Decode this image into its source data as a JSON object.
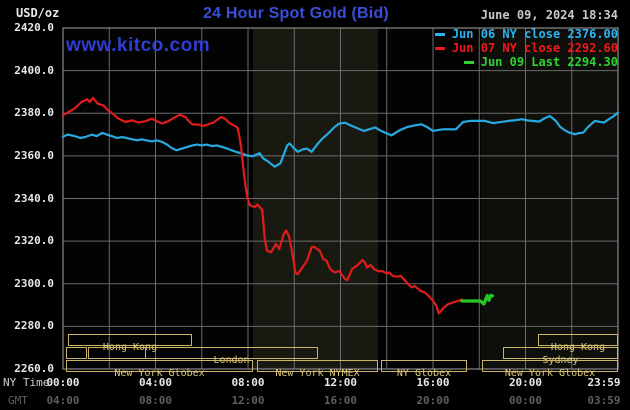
{
  "header": {
    "unit_label": "USD/oz",
    "title": "24 Hour Spot Gold (Bid)",
    "datetime": "June 09, 2024 18:34",
    "watermark": "www.kitco.com"
  },
  "colors": {
    "background": "#000000",
    "plot_background": "#030303",
    "grid": "#6b6b6b",
    "border": "#8a8a8a",
    "title_blue": "#3a4ed8",
    "watermark_blue": "#2e3ed2",
    "date_gray": "#c9c9c9",
    "axis_text": "#e8e8e8",
    "gmt_text": "#5e5e5e",
    "session_border": "#c9b565",
    "session_text": "#dcc87a",
    "series_blue": "#27aae1",
    "series_red": "#e11b1b",
    "series_green": "#24c724"
  },
  "legend": [
    {
      "label": "Jun 06 NY close 2376.00",
      "color": "#2db3f0"
    },
    {
      "label": "Jun 07 NY close 2292.60",
      "color": "#f01818"
    },
    {
      "label": "Jun 09 Last 2294.30",
      "color": "#2fd32f"
    }
  ],
  "axes": {
    "ny_label": "NY Time",
    "gmt_label": "GMT",
    "y_ticks": [
      {
        "label": "2420.0",
        "value": 2420
      },
      {
        "label": "2400.0",
        "value": 2400
      },
      {
        "label": "2380.0",
        "value": 2380
      },
      {
        "label": "2360.0",
        "value": 2360
      },
      {
        "label": "2340.0",
        "value": 2340
      },
      {
        "label": "2320.0",
        "value": 2320
      },
      {
        "label": "2300.0",
        "value": 2300
      },
      {
        "label": "2280.0",
        "value": 2280
      },
      {
        "label": "2260.0",
        "value": 2260
      }
    ],
    "x_ticks_ny": [
      {
        "label": "00:00",
        "hour": 0
      },
      {
        "label": "04:00",
        "hour": 4
      },
      {
        "label": "08:00",
        "hour": 8
      },
      {
        "label": "12:00",
        "hour": 12
      },
      {
        "label": "16:00",
        "hour": 16
      },
      {
        "label": "20:00",
        "hour": 20
      },
      {
        "label": "23:59",
        "hour": 23.983
      }
    ],
    "x_ticks_gmt": [
      {
        "label": "04:00",
        "hour": 0
      },
      {
        "label": "08:00",
        "hour": 4
      },
      {
        "label": "12:00",
        "hour": 8
      },
      {
        "label": "16:00",
        "hour": 12
      },
      {
        "label": "20:00",
        "hour": 16
      },
      {
        "label": "00:00",
        "hour": 20
      },
      {
        "label": "03:59",
        "hour": 23.983
      }
    ]
  },
  "sessions": {
    "rows": [
      {
        "boxes": [
          {
            "label": "Hong Kong",
            "h1": 0.2,
            "h2": 5.58
          },
          {
            "label": "Hong Kong",
            "h1": 20.54,
            "h2": 24
          }
        ]
      },
      {
        "boxes": [
          {
            "label": "",
            "h1": 0.15,
            "h2": 1.06
          },
          {
            "label": "",
            "h1": 1.06,
            "h2": 3.55
          },
          {
            "label": "London",
            "h1": 3.55,
            "h2": 11.03
          },
          {
            "label": "Sydney",
            "h1": 19.03,
            "h2": 24
          }
        ]
      },
      {
        "boxes": [
          {
            "label": "New York Globex",
            "h1": 0.12,
            "h2": 8.22
          },
          {
            "label": "New York NYMEX",
            "h1": 8.39,
            "h2": 13.62
          },
          {
            "label": "NY Globex",
            "h1": 13.75,
            "h2": 17.47
          },
          {
            "label": "New York Globex",
            "h1": 18.12,
            "h2": 24
          }
        ]
      }
    ]
  },
  "chart_data": {
    "type": "line",
    "title": "24 Hour Spot Gold (Bid)",
    "xlabel": "NY Time (hours)",
    "ylabel": "USD/oz",
    "xlim": [
      0,
      24
    ],
    "ylim": [
      2260,
      2420
    ],
    "y_grid_step": 20,
    "x_grid_step_hours": 2,
    "grid": true,
    "legend_position": "top-right",
    "bands": [
      {
        "name": "nymex-session",
        "h1": 8.22,
        "h2": 13.62,
        "color": "#181a11"
      },
      {
        "name": "sunday-globex-session",
        "h1": 18.08,
        "h2": 24,
        "color": "#0e0f0b"
      }
    ],
    "series": [
      {
        "name": "Jun 06 NY close 2376.00",
        "color": "#27aae1",
        "width": 2.2,
        "points": [
          [
            0,
            2369
          ],
          [
            0.2,
            2370
          ],
          [
            0.5,
            2369.3
          ],
          [
            0.75,
            2368.4
          ],
          [
            0.95,
            2368.8
          ],
          [
            1.25,
            2370
          ],
          [
            1.45,
            2369.3
          ],
          [
            1.7,
            2370.8
          ],
          [
            1.9,
            2370
          ],
          [
            2.1,
            2369.3
          ],
          [
            2.35,
            2368.4
          ],
          [
            2.55,
            2368.8
          ],
          [
            2.75,
            2368.4
          ],
          [
            3,
            2367.8
          ],
          [
            3.2,
            2367.3
          ],
          [
            3.4,
            2367.8
          ],
          [
            3.6,
            2367.3
          ],
          [
            3.85,
            2366.8
          ],
          [
            4.05,
            2367.3
          ],
          [
            4.3,
            2366.5
          ],
          [
            4.5,
            2365.3
          ],
          [
            4.7,
            2363.7
          ],
          [
            4.9,
            2362.6
          ],
          [
            5.15,
            2363.4
          ],
          [
            5.35,
            2364.1
          ],
          [
            5.6,
            2364.9
          ],
          [
            5.8,
            2365.3
          ],
          [
            6,
            2364.9
          ],
          [
            6.2,
            2365.3
          ],
          [
            6.45,
            2364.6
          ],
          [
            6.65,
            2364.9
          ],
          [
            6.9,
            2364.1
          ],
          [
            7.1,
            2363.4
          ],
          [
            7.3,
            2362.6
          ],
          [
            7.5,
            2361.8
          ],
          [
            7.75,
            2361.1
          ],
          [
            7.95,
            2360.2
          ],
          [
            8.2,
            2359.8
          ],
          [
            8.5,
            2361.3
          ],
          [
            8.65,
            2358.9
          ],
          [
            8.85,
            2357.5
          ],
          [
            9.15,
            2354.9
          ],
          [
            9.4,
            2356.5
          ],
          [
            9.7,
            2365
          ],
          [
            9.8,
            2365.8
          ],
          [
            9.95,
            2364
          ],
          [
            10.15,
            2361.9
          ],
          [
            10.35,
            2363
          ],
          [
            10.55,
            2363.4
          ],
          [
            10.75,
            2361.9
          ],
          [
            11,
            2365.5
          ],
          [
            11.2,
            2368
          ],
          [
            11.4,
            2369.8
          ],
          [
            11.75,
            2373.6
          ],
          [
            11.95,
            2375.2
          ],
          [
            12.2,
            2375.5
          ],
          [
            12.5,
            2374
          ],
          [
            13,
            2371.7
          ],
          [
            13.5,
            2373.3
          ],
          [
            13.8,
            2371.5
          ],
          [
            14.2,
            2369.6
          ],
          [
            14.55,
            2372
          ],
          [
            14.9,
            2373.6
          ],
          [
            15.2,
            2374.3
          ],
          [
            15.5,
            2374.8
          ],
          [
            15.75,
            2373.5
          ],
          [
            16,
            2371.7
          ],
          [
            16.3,
            2372.3
          ],
          [
            16.55,
            2372.5
          ],
          [
            16.8,
            2372.4
          ],
          [
            17,
            2372.5
          ],
          [
            17.3,
            2375.9
          ],
          [
            17.6,
            2376.4
          ],
          [
            18.25,
            2376.4
          ],
          [
            18.6,
            2375.4
          ],
          [
            19,
            2376
          ],
          [
            19.25,
            2376.4
          ],
          [
            19.6,
            2376.8
          ],
          [
            19.85,
            2377.2
          ],
          [
            20.1,
            2376.6
          ],
          [
            20.3,
            2376.4
          ],
          [
            20.6,
            2376.1
          ],
          [
            20.8,
            2377.5
          ],
          [
            21.05,
            2378.7
          ],
          [
            21.3,
            2376.5
          ],
          [
            21.5,
            2373.6
          ],
          [
            21.7,
            2372
          ],
          [
            21.9,
            2370.9
          ],
          [
            22.15,
            2370.1
          ],
          [
            22.3,
            2370.7
          ],
          [
            22.5,
            2370.9
          ],
          [
            22.7,
            2373.5
          ],
          [
            23,
            2376.4
          ],
          [
            23.2,
            2376
          ],
          [
            23.4,
            2375.6
          ],
          [
            23.6,
            2377.2
          ],
          [
            23.8,
            2378.5
          ],
          [
            24,
            2380.3
          ]
        ]
      },
      {
        "name": "Jun 07 NY close 2292.60",
        "color": "#e11b1b",
        "width": 2.2,
        "points": [
          [
            0,
            2379.1
          ],
          [
            0.5,
            2382.2
          ],
          [
            0.8,
            2385.3
          ],
          [
            1.05,
            2386.6
          ],
          [
            1.15,
            2385.3
          ],
          [
            1.3,
            2387.2
          ],
          [
            1.5,
            2384.5
          ],
          [
            1.75,
            2383.7
          ],
          [
            1.95,
            2381.4
          ],
          [
            2.15,
            2379.8
          ],
          [
            2.4,
            2377.5
          ],
          [
            2.7,
            2375.9
          ],
          [
            3,
            2376.7
          ],
          [
            3.25,
            2375.6
          ],
          [
            3.55,
            2376.2
          ],
          [
            3.85,
            2377.5
          ],
          [
            4.05,
            2376.2
          ],
          [
            4.3,
            2375.2
          ],
          [
            4.55,
            2376.2
          ],
          [
            4.85,
            2378.2
          ],
          [
            5.05,
            2379.3
          ],
          [
            5.3,
            2378.2
          ],
          [
            5.4,
            2376.7
          ],
          [
            5.6,
            2374.7
          ],
          [
            5.85,
            2374.7
          ],
          [
            6.05,
            2374
          ],
          [
            6.25,
            2374.7
          ],
          [
            6.5,
            2375.6
          ],
          [
            6.7,
            2377.2
          ],
          [
            6.85,
            2378.2
          ],
          [
            7,
            2377.5
          ],
          [
            7.15,
            2375.9
          ],
          [
            7.3,
            2374.7
          ],
          [
            7.45,
            2374
          ],
          [
            7.55,
            2373.1
          ],
          [
            7.62,
            2369.6
          ],
          [
            7.7,
            2364
          ],
          [
            7.78,
            2356
          ],
          [
            7.88,
            2347
          ],
          [
            7.98,
            2340
          ],
          [
            8.08,
            2337
          ],
          [
            8.15,
            2336.5
          ],
          [
            8.3,
            2336
          ],
          [
            8.4,
            2337.2
          ],
          [
            8.55,
            2335.5
          ],
          [
            8.62,
            2334.4
          ],
          [
            8.72,
            2321.8
          ],
          [
            8.82,
            2315.5
          ],
          [
            9,
            2314.7
          ],
          [
            9.2,
            2318.7
          ],
          [
            9.35,
            2316.3
          ],
          [
            9.55,
            2323.4
          ],
          [
            9.65,
            2325
          ],
          [
            9.78,
            2322
          ],
          [
            9.9,
            2315.5
          ],
          [
            10.05,
            2305.3
          ],
          [
            10.15,
            2304.5
          ],
          [
            10.35,
            2307.6
          ],
          [
            10.55,
            2310.8
          ],
          [
            10.75,
            2317.1
          ],
          [
            10.85,
            2317.4
          ],
          [
            11.1,
            2315.5
          ],
          [
            11.25,
            2311.6
          ],
          [
            11.4,
            2310.8
          ],
          [
            11.55,
            2306.9
          ],
          [
            11.75,
            2305.3
          ],
          [
            11.95,
            2306
          ],
          [
            12.2,
            2302.2
          ],
          [
            12.3,
            2301.7
          ],
          [
            12.5,
            2306.9
          ],
          [
            12.7,
            2308.4
          ],
          [
            12.95,
            2311.1
          ],
          [
            13.05,
            2310
          ],
          [
            13.15,
            2307.6
          ],
          [
            13.3,
            2308.9
          ],
          [
            13.45,
            2306.9
          ],
          [
            13.65,
            2305.8
          ],
          [
            13.8,
            2306
          ],
          [
            14,
            2304.8
          ],
          [
            14.1,
            2305.3
          ],
          [
            14.25,
            2303.7
          ],
          [
            14.45,
            2303.3
          ],
          [
            14.6,
            2303.7
          ],
          [
            14.8,
            2301.4
          ],
          [
            15,
            2299
          ],
          [
            15.1,
            2298.3
          ],
          [
            15.2,
            2299
          ],
          [
            15.45,
            2296.7
          ],
          [
            15.65,
            2295.9
          ],
          [
            15.85,
            2293.9
          ],
          [
            16,
            2292
          ],
          [
            16.15,
            2289.6
          ],
          [
            16.25,
            2286
          ],
          [
            16.45,
            2288.6
          ],
          [
            16.65,
            2290.4
          ],
          [
            16.85,
            2291.2
          ],
          [
            17.1,
            2292
          ],
          [
            17.25,
            2292.6
          ]
        ]
      },
      {
        "name": "Jun 09 Last 2294.30",
        "color": "#24c724",
        "width": 3.2,
        "points": [
          [
            17.25,
            2291.9
          ],
          [
            17.6,
            2291.9
          ],
          [
            17.9,
            2291.9
          ],
          [
            18.05,
            2291.9
          ],
          [
            18.2,
            2290.5
          ],
          [
            18.35,
            2294.5
          ],
          [
            18.42,
            2292.3
          ],
          [
            18.5,
            2294.6
          ],
          [
            18.57,
            2294.3
          ]
        ]
      }
    ]
  }
}
